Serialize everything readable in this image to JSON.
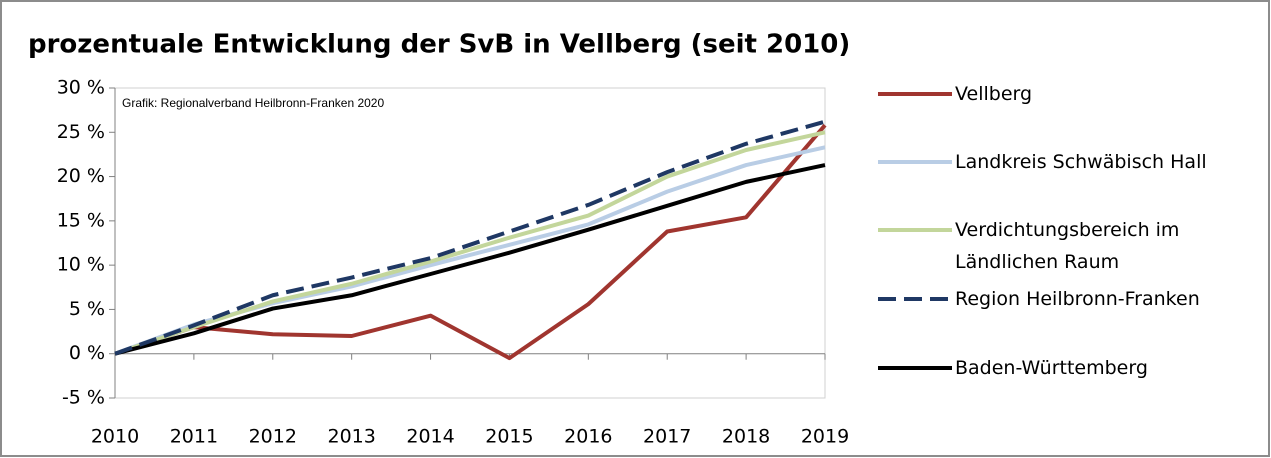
{
  "chart_data": {
    "type": "line",
    "title": "prozentuale Entwicklung der SvB in Vellberg (seit 2010)",
    "annotation": "Grafik: Regionalverband Heilbronn-Franken 2020",
    "categories": [
      "2010",
      "2011",
      "2012",
      "2013",
      "2014",
      "2015",
      "2016",
      "2017",
      "2018",
      "2019"
    ],
    "series": [
      {
        "name": "Vellberg",
        "color": "#a0352f",
        "values": [
          0,
          3.0,
          2.2,
          2.0,
          4.3,
          -0.5,
          5.6,
          13.8,
          15.4,
          25.8
        ]
      },
      {
        "name": "Landkreis Schwäbisch Hall",
        "color": "#b9cde5",
        "values": [
          0,
          3.3,
          5.7,
          7.6,
          10.0,
          12.3,
          14.6,
          18.3,
          21.3,
          23.3
        ]
      },
      {
        "name": "Verdichtungsbereich im Ländlichen Raum",
        "color": "#c3d69b",
        "values": [
          0,
          3.0,
          5.9,
          7.9,
          10.4,
          13.1,
          15.6,
          20.0,
          23.0,
          25.0
        ]
      },
      {
        "name": "Region Heilbronn-Franken",
        "color": "#1f3864",
        "dashed": true,
        "values": [
          0,
          3.2,
          6.6,
          8.6,
          10.8,
          13.8,
          16.8,
          20.5,
          23.7,
          26.2
        ]
      },
      {
        "name": "Baden-Württemberg",
        "color": "#000000",
        "values": [
          0,
          2.3,
          5.1,
          6.6,
          9.0,
          11.4,
          14.0,
          16.7,
          19.4,
          21.3
        ]
      }
    ],
    "ylim": [
      -5,
      30
    ],
    "yticks": [
      {
        "value": -5,
        "label": "-5 %"
      },
      {
        "value": 0,
        "label": "0 %"
      },
      {
        "value": 5,
        "label": "5 %"
      },
      {
        "value": 10,
        "label": "10 %"
      },
      {
        "value": 15,
        "label": "15 %"
      },
      {
        "value": 20,
        "label": "20 %"
      },
      {
        "value": 25,
        "label": "25 %"
      },
      {
        "value": 30,
        "label": "30 %"
      }
    ],
    "grid": false,
    "legend": "right"
  }
}
